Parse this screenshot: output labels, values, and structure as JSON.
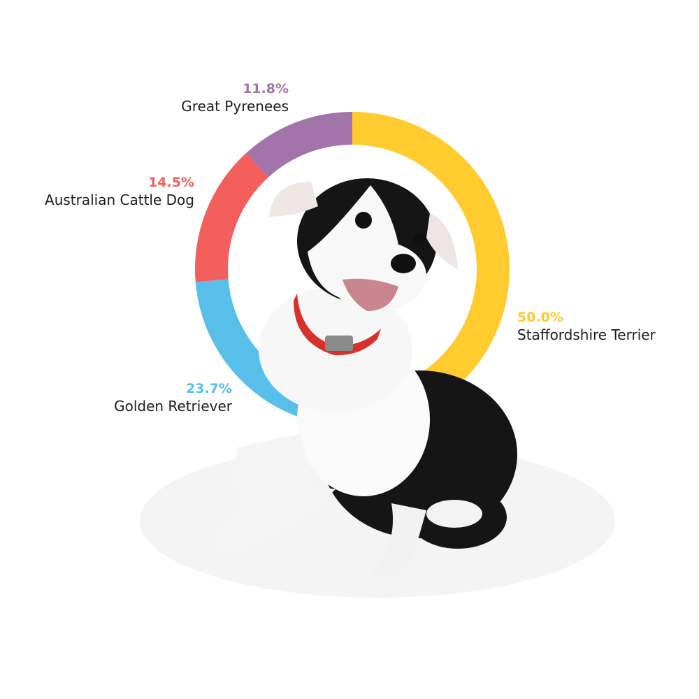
{
  "chart_data": {
    "type": "pie",
    "variant": "donut",
    "categories": [
      "Staffordshire Terrier",
      "Golden Retriever",
      "Australian Cattle Dog",
      "Great Pyrenees"
    ],
    "values": [
      50.0,
      23.7,
      14.5,
      11.8
    ],
    "value_labels": [
      "50.0%",
      "23.7%",
      "14.5%",
      "11.8%"
    ],
    "colors": [
      "#FFCB2F",
      "#58BFEA",
      "#F25F5C",
      "#A274AA"
    ],
    "start_angle": "top",
    "direction": "clockwise",
    "center_image": "black-and-white-puppy-with-red-collar"
  }
}
